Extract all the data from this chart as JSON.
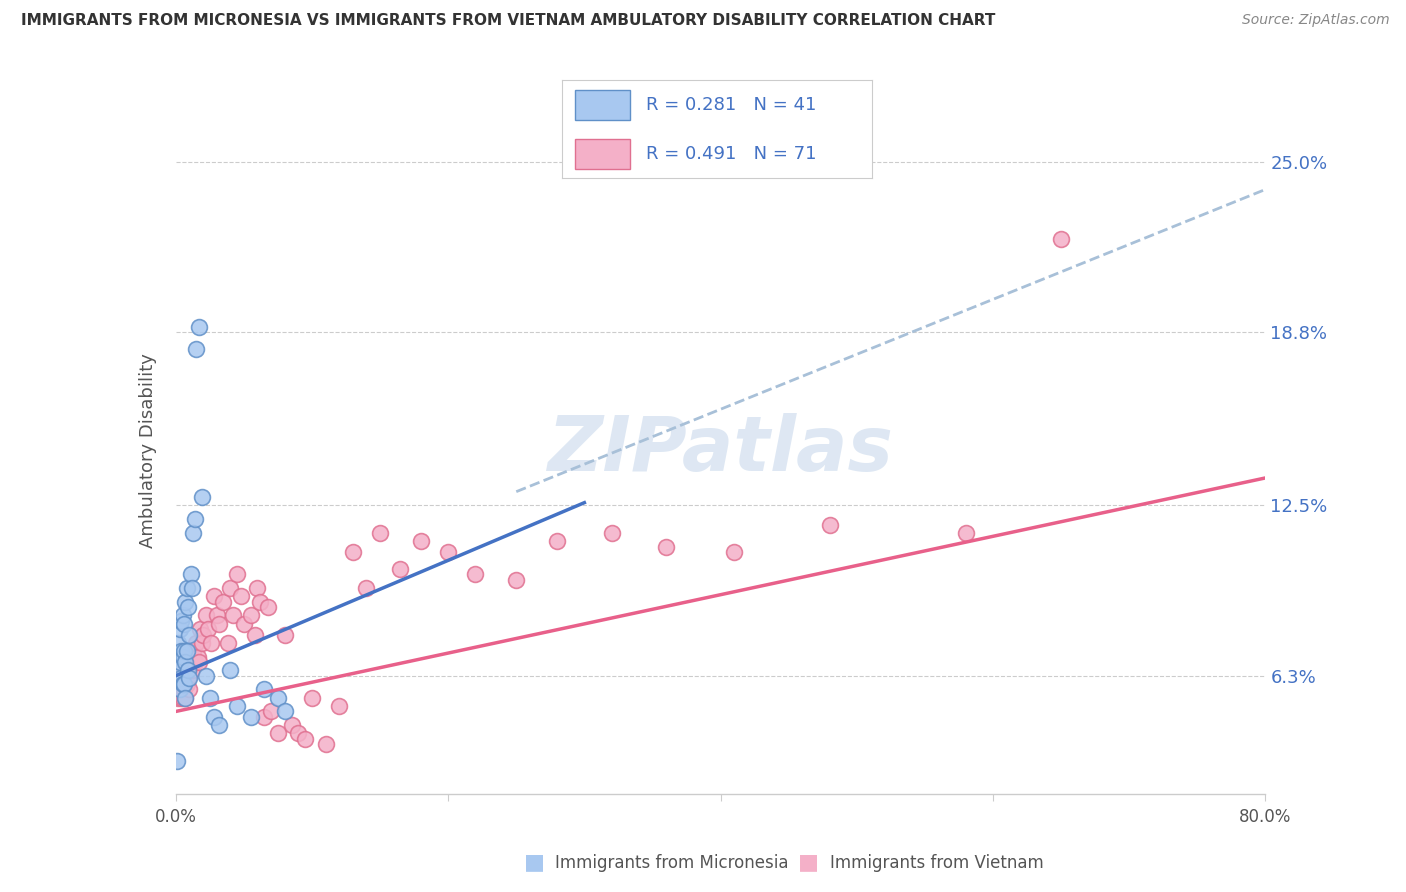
{
  "title": "IMMIGRANTS FROM MICRONESIA VS IMMIGRANTS FROM VIETNAM AMBULATORY DISABILITY CORRELATION CHART",
  "source": "Source: ZipAtlas.com",
  "ylabel": "Ambulatory Disability",
  "ytick_labels": [
    "6.3%",
    "12.5%",
    "18.8%",
    "25.0%"
  ],
  "ytick_values": [
    0.063,
    0.125,
    0.188,
    0.25
  ],
  "xlim": [
    0.0,
    0.8
  ],
  "ylim": [
    0.02,
    0.27
  ],
  "legend_text_color": "#4472c4",
  "micronesia_color": "#a8c8f0",
  "vietnam_color": "#f4b0c8",
  "micronesia_edge": "#6090c8",
  "vietnam_edge": "#e07090",
  "blue_line_color": "#4472c4",
  "pink_line_color": "#e8608a",
  "dashed_line_color": "#a8c0d8",
  "watermark_color": "#c8d8ec",
  "micro_trend_x0": 0.0,
  "micro_trend_y0": 0.063,
  "micro_trend_x1": 0.3,
  "micro_trend_y1": 0.126,
  "viet_trend_x0": 0.0,
  "viet_trend_y0": 0.05,
  "viet_trend_x1": 0.8,
  "viet_trend_y1": 0.135,
  "dash_trend_x0": 0.25,
  "dash_trend_y0": 0.13,
  "dash_trend_x1": 0.8,
  "dash_trend_y1": 0.24,
  "micronesia_x": [
    0.001,
    0.002,
    0.002,
    0.003,
    0.003,
    0.003,
    0.004,
    0.004,
    0.004,
    0.005,
    0.005,
    0.005,
    0.006,
    0.006,
    0.006,
    0.007,
    0.007,
    0.007,
    0.008,
    0.008,
    0.009,
    0.009,
    0.01,
    0.01,
    0.011,
    0.012,
    0.013,
    0.014,
    0.015,
    0.017,
    0.019,
    0.022,
    0.025,
    0.028,
    0.032,
    0.04,
    0.045,
    0.055,
    0.065,
    0.075,
    0.08
  ],
  "micronesia_y": [
    0.032,
    0.075,
    0.065,
    0.08,
    0.068,
    0.058,
    0.083,
    0.072,
    0.062,
    0.085,
    0.07,
    0.06,
    0.082,
    0.072,
    0.06,
    0.09,
    0.068,
    0.055,
    0.095,
    0.072,
    0.088,
    0.065,
    0.078,
    0.062,
    0.1,
    0.095,
    0.115,
    0.12,
    0.182,
    0.19,
    0.128,
    0.063,
    0.055,
    0.048,
    0.045,
    0.065,
    0.052,
    0.048,
    0.058,
    0.055,
    0.05
  ],
  "vietnam_x": [
    0.002,
    0.002,
    0.003,
    0.003,
    0.004,
    0.004,
    0.005,
    0.005,
    0.006,
    0.006,
    0.007,
    0.007,
    0.008,
    0.008,
    0.009,
    0.009,
    0.01,
    0.01,
    0.011,
    0.012,
    0.013,
    0.014,
    0.015,
    0.016,
    0.017,
    0.018,
    0.019,
    0.02,
    0.022,
    0.024,
    0.026,
    0.028,
    0.03,
    0.032,
    0.035,
    0.038,
    0.04,
    0.042,
    0.045,
    0.048,
    0.05,
    0.055,
    0.058,
    0.06,
    0.062,
    0.065,
    0.068,
    0.07,
    0.075,
    0.08,
    0.085,
    0.09,
    0.095,
    0.1,
    0.11,
    0.12,
    0.13,
    0.14,
    0.15,
    0.165,
    0.18,
    0.2,
    0.22,
    0.25,
    0.28,
    0.32,
    0.36,
    0.41,
    0.48,
    0.58,
    0.65
  ],
  "vietnam_y": [
    0.06,
    0.055,
    0.065,
    0.058,
    0.062,
    0.055,
    0.065,
    0.055,
    0.068,
    0.058,
    0.065,
    0.055,
    0.068,
    0.06,
    0.072,
    0.062,
    0.065,
    0.058,
    0.07,
    0.065,
    0.072,
    0.068,
    0.075,
    0.07,
    0.068,
    0.08,
    0.075,
    0.078,
    0.085,
    0.08,
    0.075,
    0.092,
    0.085,
    0.082,
    0.09,
    0.075,
    0.095,
    0.085,
    0.1,
    0.092,
    0.082,
    0.085,
    0.078,
    0.095,
    0.09,
    0.048,
    0.088,
    0.05,
    0.042,
    0.078,
    0.045,
    0.042,
    0.04,
    0.055,
    0.038,
    0.052,
    0.108,
    0.095,
    0.115,
    0.102,
    0.112,
    0.108,
    0.1,
    0.098,
    0.112,
    0.115,
    0.11,
    0.108,
    0.118,
    0.115,
    0.222
  ]
}
